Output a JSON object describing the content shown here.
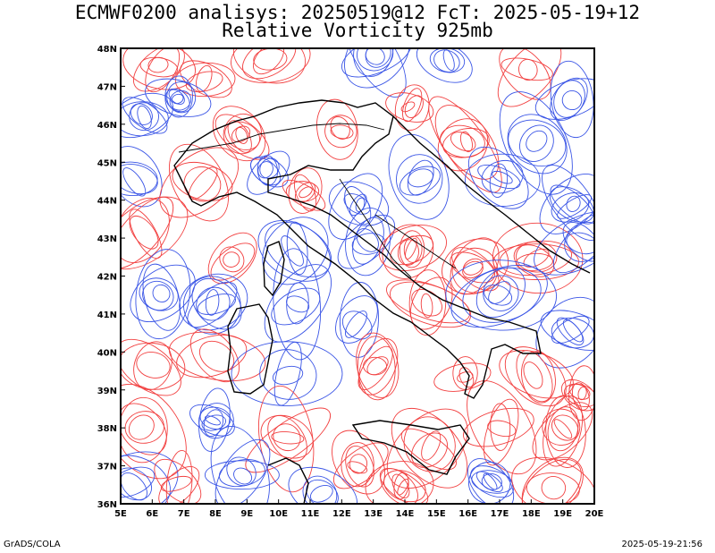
{
  "title": {
    "line1": "ECMWF0200 analisys: 20250519@12 FcT: 2025-05-19+12",
    "line2": "Relative Vorticity 925mb"
  },
  "map": {
    "lat_labels": [
      "48N",
      "47N",
      "46N",
      "45N",
      "44N",
      "43N",
      "42N",
      "41N",
      "40N",
      "39N",
      "38N",
      "37N",
      "36N"
    ],
    "lon_labels": [
      "5E",
      "6E",
      "7E",
      "8E",
      "9E",
      "10E",
      "11E",
      "12E",
      "13E",
      "14E",
      "15E",
      "16E",
      "17E",
      "18E",
      "19E",
      "20E"
    ],
    "colors": {
      "positive": "#f24040",
      "negative": "#3a55e6",
      "coast": "#000000",
      "frame": "#000000"
    },
    "field": "relative vorticity contours (red positive, blue negative)"
  },
  "footer": {
    "left": "GrADS/COLA",
    "right": "2025-05-19-21:56"
  }
}
